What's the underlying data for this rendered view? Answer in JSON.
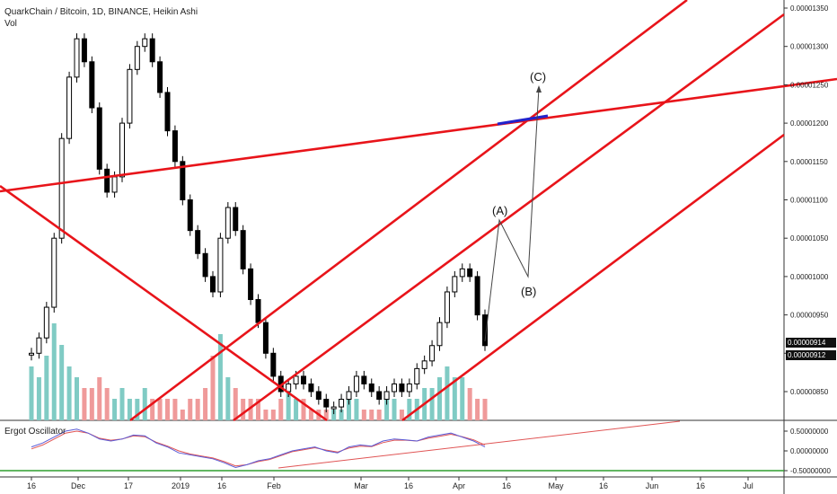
{
  "header": {
    "title": "QuarkChain / Bitcoin, 1D, BINANCE, Heikin Ashi",
    "volume_label": "Vol",
    "indicator_label": "Ergot Oscillator"
  },
  "price_tags": [
    "0.00000914",
    "0.00000912"
  ],
  "wave_labels": [
    "(A)",
    "(B)",
    "(C)"
  ],
  "colors": {
    "background": "#ffffff",
    "trendline": "#e8141a",
    "target_marker": "#2222cc",
    "candles": "#000000",
    "volume_up": "#80cbc4",
    "volume_down": "#ef9a9a",
    "oscillator_fast": "#5b5bd6",
    "oscillator_slow": "#e05555",
    "zero_line": "#2e9e2e"
  },
  "chart_data": {
    "type": "candlestick",
    "chart_style": "Heikin Ashi",
    "x_ticks": [
      "16",
      "Dec",
      "17",
      "2019",
      "16",
      "Feb",
      "Mar",
      "16",
      "Apr",
      "16",
      "May",
      "16",
      "Jun",
      "16",
      "Jul"
    ],
    "y_axis": {
      "ticks": [
        "0.00001350",
        "0.00001300",
        "0.00001250",
        "0.00001200",
        "0.00001150",
        "0.00001100",
        "0.00001050",
        "0.00001000",
        "0.00000950",
        "0.00000900",
        "0.00000850"
      ],
      "range": [
        8.1e-06,
        1.36e-05
      ]
    },
    "closes": [
      9e-06,
      9.2e-06,
      9.6e-06,
      1.05e-05,
      1.18e-05,
      1.26e-05,
      1.31e-05,
      1.28e-05,
      1.22e-05,
      1.14e-05,
      1.11e-05,
      1.13e-05,
      1.2e-05,
      1.27e-05,
      1.3e-05,
      1.31e-05,
      1.28e-05,
      1.24e-05,
      1.19e-05,
      1.15e-05,
      1.1e-05,
      1.06e-05,
      1.03e-05,
      1e-05,
      9.8e-06,
      1.05e-05,
      1.09e-05,
      1.06e-05,
      1.01e-05,
      9.7e-06,
      9.4e-06,
      9e-06,
      8.7e-06,
      8.5e-06,
      8.6e-06,
      8.7e-06,
      8.6e-06,
      8.5e-06,
      8.4e-06,
      8.3e-06,
      8.3e-06,
      8.4e-06,
      8.5e-06,
      8.7e-06,
      8.6e-06,
      8.5e-06,
      8.4e-06,
      8.5e-06,
      8.6e-06,
      8.5e-06,
      8.6e-06,
      8.8e-06,
      8.9e-06,
      9.1e-06,
      9.4e-06,
      9.8e-06,
      1e-05,
      1.01e-05,
      1e-05,
      9.5e-06,
      9.1e-06
    ],
    "volume": {
      "name": "Vol",
      "values": [
        0.5,
        0.4,
        0.6,
        0.9,
        0.7,
        0.5,
        0.4,
        0.3,
        0.3,
        0.4,
        0.3,
        0.2,
        0.3,
        0.2,
        0.2,
        0.3,
        0.2,
        0.2,
        0.2,
        0.2,
        0.1,
        0.2,
        0.2,
        0.3,
        0.6,
        0.8,
        0.4,
        0.3,
        0.2,
        0.2,
        0.2,
        0.1,
        0.1,
        0.2,
        0.3,
        0.2,
        0.2,
        0.1,
        0.1,
        0.1,
        0.1,
        0.1,
        0.2,
        0.2,
        0.1,
        0.1,
        0.1,
        0.2,
        0.2,
        0.1,
        0.2,
        0.2,
        0.3,
        0.3,
        0.4,
        0.5,
        0.4,
        0.4,
        0.3,
        0.2,
        0.2
      ]
    },
    "indicator": {
      "name": "Ergot Oscillator",
      "ticks": [
        "0.50000000",
        "0.00000000",
        "-0.50000000"
      ],
      "range": [
        -0.6,
        0.6
      ],
      "fast": [
        0.1,
        0.2,
        0.35,
        0.5,
        0.55,
        0.45,
        0.3,
        0.25,
        0.3,
        0.4,
        0.38,
        0.2,
        0.1,
        -0.05,
        -0.1,
        -0.15,
        -0.2,
        -0.3,
        -0.42,
        -0.35,
        -0.25,
        -0.2,
        -0.1,
        0.0,
        0.05,
        0.1,
        0.0,
        -0.05,
        0.1,
        0.15,
        0.12,
        0.25,
        0.3,
        0.28,
        0.25,
        0.35,
        0.4,
        0.45,
        0.35,
        0.25,
        0.1
      ],
      "slow": [
        0.05,
        0.15,
        0.3,
        0.45,
        0.5,
        0.45,
        0.32,
        0.27,
        0.3,
        0.38,
        0.36,
        0.22,
        0.12,
        0.0,
        -0.08,
        -0.13,
        -0.18,
        -0.27,
        -0.38,
        -0.35,
        -0.27,
        -0.22,
        -0.12,
        -0.02,
        0.03,
        0.08,
        0.02,
        -0.03,
        0.07,
        0.12,
        0.11,
        0.21,
        0.27,
        0.27,
        0.25,
        0.32,
        0.37,
        0.42,
        0.36,
        0.28,
        0.15
      ]
    },
    "annotations": [
      "(A)",
      "(B)",
      "(C)"
    ],
    "grid": false,
    "legend": "top-left"
  }
}
